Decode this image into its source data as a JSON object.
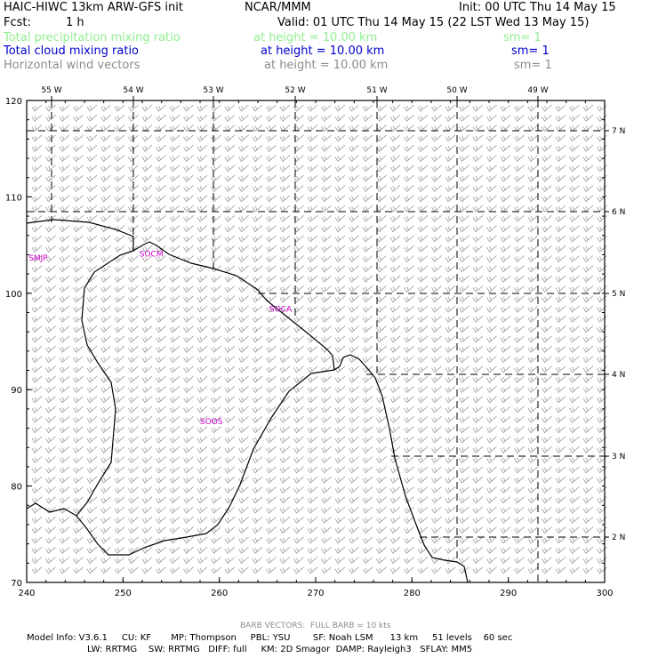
{
  "header": {
    "model_title": "HAIC-HIWC 13km ARW-GFS init",
    "org": "NCAR/MMM",
    "init": "Init: 00 UTC Thu 14 May 15",
    "fcst_label": "Fcst:",
    "fcst_value": "1 h",
    "valid": "Valid: 01 UTC Thu 14 May 15 (22 LST Wed 13 May 15)"
  },
  "fields": [
    {
      "name": "Total precipitation mixing ratio",
      "height": "at height = 10.00 km",
      "sm": "sm= 1",
      "color": "#90ee90"
    },
    {
      "name": "Total cloud mixing ratio",
      "height": "at height = 10.00 km",
      "sm": "sm= 1",
      "color": "#0000cd"
    },
    {
      "name": "Horizontal wind vectors",
      "height": "at height = 10.00 km",
      "sm": "sm= 1",
      "color": "#8c8c8c"
    }
  ],
  "map": {
    "x_range": [
      240,
      300
    ],
    "y_range": [
      70,
      120
    ],
    "x_ticks": [
      "240",
      "250",
      "260",
      "270",
      "280",
      "290",
      "300"
    ],
    "y_ticks": [
      "70",
      "80",
      "90",
      "100",
      "110",
      "120"
    ],
    "lon_labels": [
      "55 W",
      "54 W",
      "53 W",
      "52 W",
      "51 W",
      "50 W",
      "49 W"
    ],
    "lat_labels": [
      "7 N",
      "6 N",
      "5 N",
      "4 N",
      "3 N",
      "2 N"
    ],
    "stations": [
      {
        "id": "SMJP",
        "x": 240.2,
        "y": 103.4
      },
      {
        "id": "SOCM",
        "x": 251.7,
        "y": 103.8
      },
      {
        "id": "SOCA",
        "x": 265.2,
        "y": 98.1
      },
      {
        "id": "SOOS",
        "x": 258.0,
        "y": 86.4
      }
    ],
    "station_color": "#cc00cc"
  },
  "footer": {
    "barb_vectors": "BARB VECTORS:  FULL BARB = 10 kts",
    "model_info_1": "Model Info: V3.6.1     CU: KF       MP: Thompson     PBL: YSU        SF: Noah LSM      13 km     51 levels    60 sec",
    "model_info_2": "LW: RRTMG    SW: RRTMG   DIFF: full     KM: 2D Smagor  DAMP: Rayleigh3   SFLAY: MM5"
  }
}
